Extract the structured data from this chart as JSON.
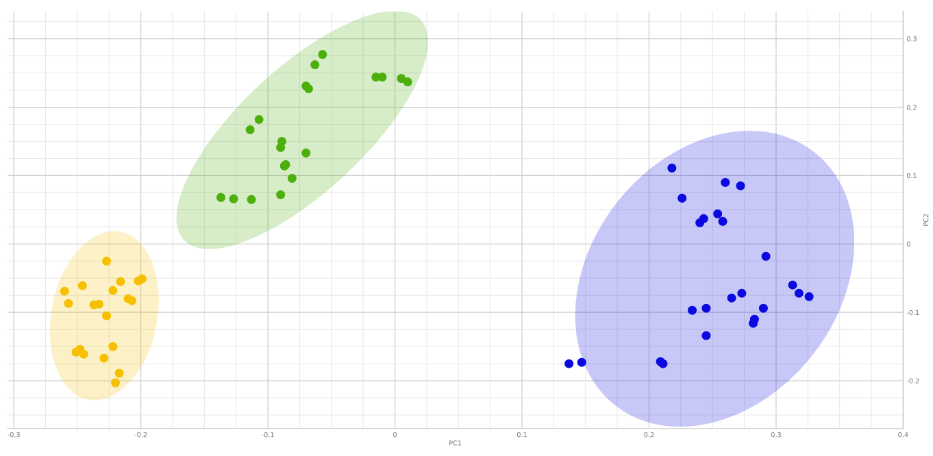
{
  "chart_data": {
    "type": "scatter",
    "xlabel": "PC1",
    "ylabel": "PC2",
    "xlim": [
      -0.305,
      0.4
    ],
    "ylim": [
      -0.27,
      0.34
    ],
    "xticks": [
      -0.3,
      -0.2,
      -0.1,
      0,
      0.1,
      0.2,
      0.3,
      0.4
    ],
    "yticks": [
      -0.2,
      -0.1,
      0,
      0.1,
      0.2,
      0.3
    ],
    "grid": true,
    "marker": "circle",
    "series": [
      {
        "color": "#4caf0c",
        "x": [
          -0.057,
          -0.063,
          -0.07,
          -0.068,
          -0.015,
          -0.01,
          0.005,
          0.01,
          -0.107,
          -0.114,
          -0.089,
          -0.09,
          -0.07,
          -0.086,
          -0.087,
          -0.081,
          -0.137,
          -0.127,
          -0.113,
          -0.09
        ],
        "values": [
          0.277,
          0.262,
          0.231,
          0.227,
          0.244,
          0.244,
          0.242,
          0.237,
          0.182,
          0.167,
          0.15,
          0.141,
          0.133,
          0.116,
          0.114,
          0.096,
          0.068,
          0.066,
          0.065,
          0.072
        ]
      },
      {
        "color": "#f6c000",
        "x": [
          -0.227,
          -0.26,
          -0.257,
          -0.246,
          -0.216,
          -0.202,
          -0.199,
          -0.222,
          -0.21,
          -0.207,
          -0.233,
          -0.237,
          -0.227,
          -0.251,
          -0.248,
          -0.245,
          -0.229,
          -0.222,
          -0.217,
          -0.22
        ],
        "values": [
          -0.025,
          -0.069,
          -0.087,
          -0.061,
          -0.055,
          -0.054,
          -0.051,
          -0.068,
          -0.08,
          -0.083,
          -0.088,
          -0.089,
          -0.105,
          -0.158,
          -0.154,
          -0.161,
          -0.167,
          -0.15,
          -0.189,
          -0.203
        ]
      },
      {
        "color": "#0a0ae0",
        "x": [
          0.218,
          0.226,
          0.26,
          0.272,
          0.254,
          0.243,
          0.24,
          0.258,
          0.292,
          0.313,
          0.318,
          0.326,
          0.273,
          0.265,
          0.245,
          0.234,
          0.29,
          0.283,
          0.282,
          0.245,
          0.137,
          0.147,
          0.209,
          0.211
        ],
        "values": [
          0.111,
          0.067,
          0.09,
          0.085,
          0.044,
          0.037,
          0.031,
          0.033,
          -0.018,
          -0.06,
          -0.072,
          -0.077,
          -0.072,
          -0.079,
          -0.094,
          -0.097,
          -0.094,
          -0.11,
          -0.116,
          -0.134,
          -0.175,
          -0.173,
          -0.172,
          -0.175
        ]
      }
    ]
  }
}
